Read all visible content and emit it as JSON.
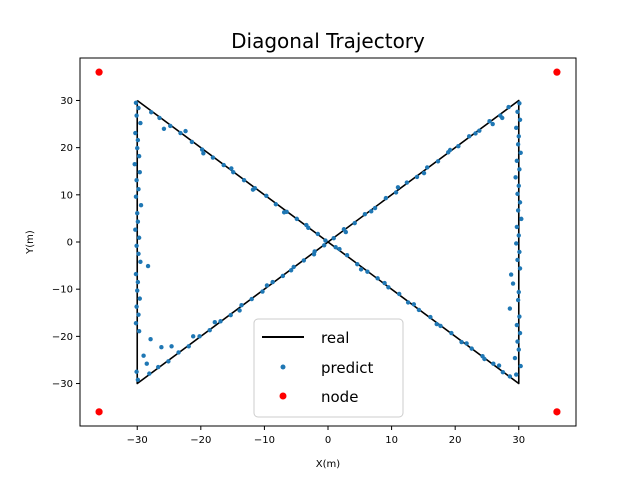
{
  "chart_data": {
    "type": "scatter",
    "title": "Diagonal Trajectory",
    "xlabel": "X(m)",
    "ylabel": "Y(m)",
    "xlim": [
      -39,
      39
    ],
    "ylim": [
      -39,
      39
    ],
    "xticks": [
      -30,
      -20,
      -10,
      0,
      10,
      20,
      30
    ],
    "yticks": [
      -30,
      -20,
      -10,
      0,
      10,
      20,
      30
    ],
    "grid": false,
    "legend_position": "lower-center",
    "colors": {
      "real": "#000000",
      "predict": "#1f77b4",
      "node": "#ff0000"
    },
    "series": [
      {
        "name": "real",
        "kind": "line",
        "x": [
          -30,
          30,
          30,
          -30,
          -30
        ],
        "y": [
          30,
          -30,
          30,
          -30,
          30
        ]
      },
      {
        "name": "predict",
        "kind": "scatter",
        "x": [
          -30.2,
          -29.8,
          -30.1,
          -29.5,
          -30.3,
          -29.9,
          -30.0,
          -29.7,
          -30.4,
          -29.6,
          -30.1,
          -29.8,
          -30.2,
          -29.4,
          -30.0,
          -29.9,
          -30.3,
          -29.7,
          -30.1,
          -29.8,
          -29.5,
          -28.3,
          -30.2,
          -29.9,
          -30.0,
          -29.6,
          -30.1,
          -29.8,
          -30.2,
          -29.7,
          -27.9,
          -26.2,
          -29.0,
          -28.5,
          -30.1,
          -29.9,
          30.1,
          29.8,
          30.2,
          29.6,
          30.0,
          29.9,
          30.3,
          29.7,
          30.1,
          29.5,
          30.0,
          29.8,
          30.2,
          29.9,
          30.4,
          29.7,
          30.0,
          29.6,
          30.1,
          29.8,
          30.2,
          28.8,
          29.1,
          30.0,
          29.9,
          28.6,
          30.1,
          29.7,
          30.2,
          29.8,
          30.0,
          29.4,
          30.3,
          29.6,
          -27.8,
          -26.5,
          -24.8,
          -23.2,
          -21.4,
          -19.8,
          -18.1,
          -16.4,
          -14.9,
          -13.2,
          -11.5,
          -9.7,
          -8.2,
          -6.5,
          -4.9,
          -3.1,
          -1.6,
          -0.4,
          1.2,
          3.0,
          4.6,
          6.2,
          7.8,
          9.5,
          11.2,
          12.6,
          14.3,
          16.1,
          17.7,
          19.4,
          21.0,
          22.6,
          24.3,
          26.0,
          27.5,
          28.6,
          -28.1,
          -26.7,
          -25.1,
          -23.5,
          -21.9,
          -20.2,
          -18.6,
          -16.9,
          -15.3,
          -13.6,
          -12.0,
          -10.3,
          -8.7,
          -7.1,
          -5.4,
          -3.8,
          -2.1,
          -0.6,
          0.9,
          2.5,
          4.2,
          5.8,
          7.4,
          9.1,
          10.7,
          12.4,
          14.0,
          15.6,
          17.3,
          18.9,
          20.5,
          22.2,
          23.8,
          25.4,
          27.1,
          28.4,
          -25.8,
          -22.4,
          -19.6,
          -15.2,
          -11.8,
          -6.9,
          -3.4,
          1.8,
          5.2,
          8.9,
          13.5,
          17.1,
          21.8,
          24.6,
          26.9,
          -24.6,
          -21.2,
          -17.8,
          -13.9,
          -9.6,
          -5.8,
          -2.2,
          2.8,
          6.8,
          11.0,
          15.1,
          19.2,
          23.2,
          25.9,
          27.4
        ],
        "y": [
          29.5,
          28.4,
          26.8,
          25.2,
          23.1,
          21.6,
          19.9,
          18.2,
          16.5,
          14.8,
          13.1,
          11.2,
          9.6,
          7.8,
          6.1,
          4.3,
          2.6,
          0.9,
          -0.8,
          -2.5,
          -4.2,
          -5.1,
          -6.8,
          -8.5,
          -10.3,
          -12.0,
          -13.7,
          -15.4,
          -17.2,
          -18.9,
          -20.6,
          -22.3,
          -24.1,
          -25.8,
          -27.5,
          -29.2,
          29.4,
          27.6,
          25.9,
          24.2,
          22.4,
          20.7,
          18.9,
          17.2,
          15.4,
          13.7,
          11.9,
          10.2,
          8.4,
          6.7,
          4.9,
          3.2,
          1.4,
          -0.3,
          -2.1,
          -3.8,
          -5.6,
          -6.9,
          -8.8,
          -10.6,
          -12.3,
          -14.1,
          -15.8,
          -17.6,
          -19.3,
          -21.1,
          -22.8,
          -24.6,
          -26.3,
          -28.1,
          27.5,
          26.3,
          24.6,
          23.1,
          21.2,
          19.6,
          17.9,
          16.3,
          14.8,
          13.1,
          11.4,
          9.8,
          8.0,
          6.4,
          4.9,
          3.0,
          1.7,
          0.3,
          -1.1,
          -2.8,
          -4.7,
          -6.3,
          -7.7,
          -9.6,
          -11.0,
          -12.8,
          -14.4,
          -15.9,
          -17.8,
          -19.3,
          -21.2,
          -22.6,
          -24.2,
          -25.8,
          -27.6,
          -28.5,
          -27.9,
          -26.5,
          -25.3,
          -23.4,
          -22.1,
          -20.0,
          -18.7,
          -16.8,
          -15.5,
          -13.4,
          -12.1,
          -10.5,
          -8.5,
          -7.2,
          -5.3,
          -3.9,
          -2.0,
          -0.7,
          0.8,
          2.7,
          4.0,
          5.9,
          7.2,
          9.3,
          10.5,
          12.6,
          13.8,
          15.8,
          17.1,
          19.0,
          20.3,
          22.4,
          23.6,
          25.6,
          26.8,
          28.6,
          24.0,
          23.5,
          18.8,
          15.6,
          11.1,
          6.3,
          3.6,
          -1.5,
          -5.8,
          -8.7,
          -13.2,
          -17.4,
          -21.5,
          -24.8,
          -26.2,
          -22.1,
          -20.0,
          -17.0,
          -14.5,
          -9.2,
          -6.0,
          -2.6,
          2.1,
          6.5,
          11.6,
          14.6,
          19.5,
          23.0,
          25.0,
          26.3
        ]
      },
      {
        "name": "node",
        "kind": "scatter",
        "x": [
          -36,
          36,
          -36,
          36
        ],
        "y": [
          36,
          36,
          -36,
          -36
        ]
      }
    ]
  }
}
